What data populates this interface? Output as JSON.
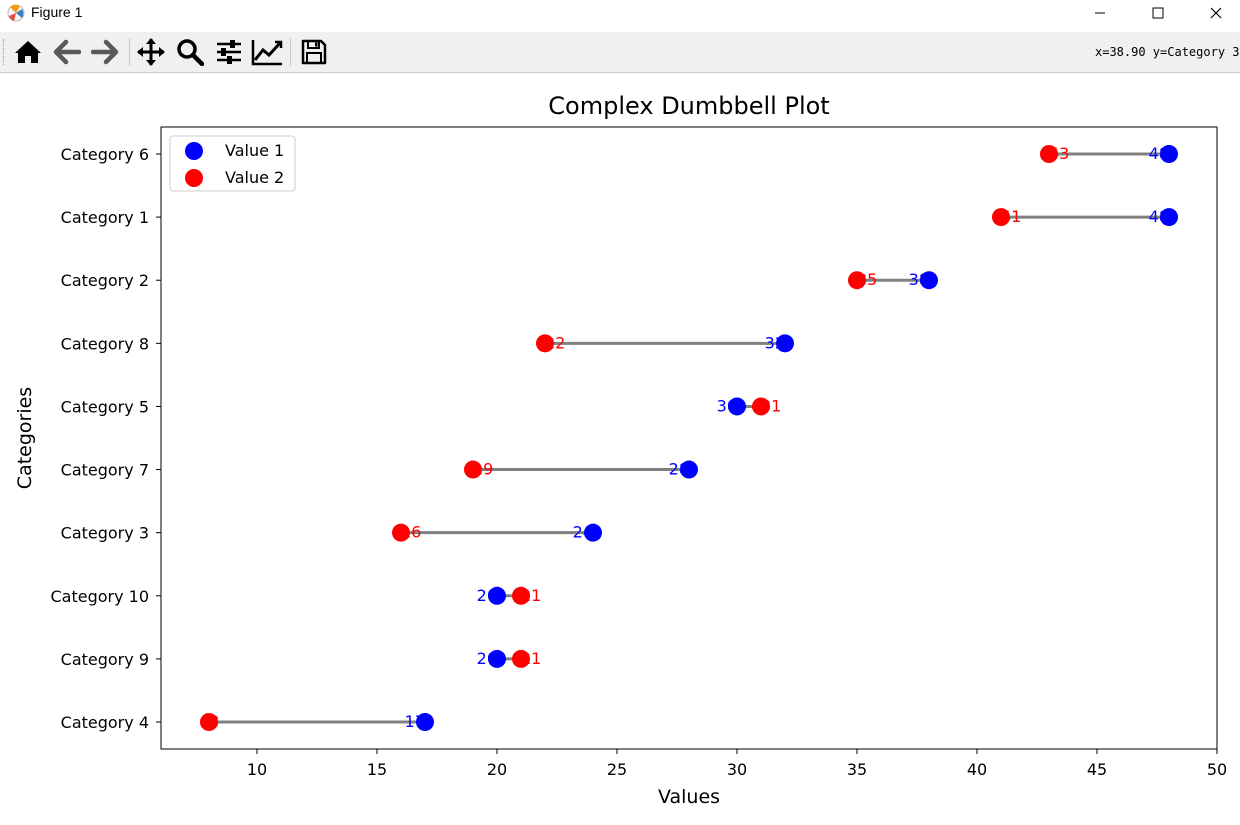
{
  "window": {
    "title": "Figure 1",
    "minimize_icon": "minimize-icon",
    "maximize_icon": "maximize-icon",
    "close_icon": "close-icon"
  },
  "toolbar": {
    "tools": [
      "home-icon",
      "back-arrow-icon",
      "forward-arrow-icon",
      "pan-icon",
      "zoom-icon",
      "configure-subplots-icon",
      "edit-axis-icon",
      "save-icon"
    ],
    "coords_text": "x=38.90 y=Category 3"
  },
  "chart_data": {
    "type": "dumbbell",
    "title": "Complex Dumbbell Plot",
    "xlabel": "Values",
    "ylabel": "Categories",
    "xlim": [
      6,
      50
    ],
    "xticks": [
      10,
      15,
      20,
      25,
      30,
      35,
      40,
      45,
      50
    ],
    "categories": [
      "Category 4",
      "Category 9",
      "Category 10",
      "Category 3",
      "Category 7",
      "Category 5",
      "Category 8",
      "Category 2",
      "Category 1",
      "Category 6"
    ],
    "series": [
      {
        "name": "Value 1",
        "color": "#0000ff",
        "values": [
          17,
          20,
          20,
          24,
          28,
          30,
          32,
          38,
          48,
          48
        ]
      },
      {
        "name": "Value 2",
        "color": "#ff0000",
        "values": [
          8,
          21,
          21,
          16,
          19,
          31,
          22,
          35,
          41,
          43
        ]
      }
    ],
    "connector_color": "#808080",
    "legend": "upper-left",
    "grid": false
  }
}
